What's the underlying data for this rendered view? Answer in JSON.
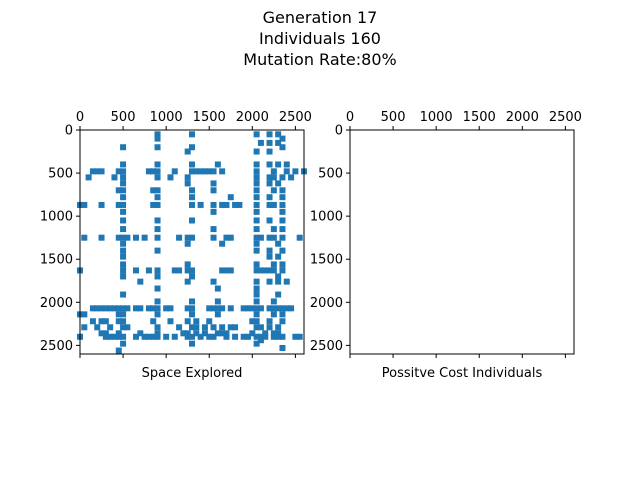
{
  "title": {
    "line1": "Generation 17",
    "line2": "Individuals 160",
    "line3": "Mutation Rate:80%"
  },
  "colors": {
    "marker": "#1f77b4",
    "axis": "#000000",
    "background": "#ffffff"
  },
  "chart_data": [
    {
      "type": "scatter",
      "xlabel": "Space Explored",
      "xlim": [
        0,
        2600
      ],
      "ylim": [
        2600,
        0
      ],
      "x_ticks": [
        0,
        500,
        1000,
        1500,
        2000,
        2500
      ],
      "y_ticks": [
        0,
        500,
        1000,
        1500,
        2000,
        2500
      ],
      "x_axis_position": "top",
      "y_inverted": true,
      "marker": "square",
      "points": [
        [
          900,
          50
        ],
        [
          900,
          100
        ],
        [
          1300,
          50
        ],
        [
          2050,
          50
        ],
        [
          2200,
          50
        ],
        [
          2300,
          50
        ],
        [
          2350,
          100
        ],
        [
          2100,
          150
        ],
        [
          2200,
          150
        ],
        [
          2300,
          150
        ],
        [
          500,
          200
        ],
        [
          900,
          200
        ],
        [
          1300,
          200
        ],
        [
          1250,
          250
        ],
        [
          2050,
          250
        ],
        [
          2200,
          250
        ],
        [
          2350,
          200
        ],
        [
          500,
          400
        ],
        [
          900,
          400
        ],
        [
          1300,
          400
        ],
        [
          1600,
          400
        ],
        [
          2050,
          400
        ],
        [
          2200,
          400
        ],
        [
          2300,
          400
        ],
        [
          2400,
          400
        ],
        [
          150,
          480
        ],
        [
          200,
          480
        ],
        [
          250,
          480
        ],
        [
          450,
          480
        ],
        [
          500,
          480
        ],
        [
          800,
          480
        ],
        [
          850,
          480
        ],
        [
          900,
          480
        ],
        [
          1100,
          480
        ],
        [
          1300,
          480
        ],
        [
          1350,
          480
        ],
        [
          1400,
          480
        ],
        [
          1450,
          480
        ],
        [
          1500,
          480
        ],
        [
          1550,
          480
        ],
        [
          1650,
          480
        ],
        [
          2050,
          480
        ],
        [
          2250,
          480
        ],
        [
          2400,
          480
        ],
        [
          2500,
          480
        ],
        [
          2600,
          480
        ],
        [
          100,
          550
        ],
        [
          400,
          550
        ],
        [
          500,
          550
        ],
        [
          900,
          550
        ],
        [
          1050,
          550
        ],
        [
          1250,
          550
        ],
        [
          2050,
          550
        ],
        [
          2200,
          550
        ],
        [
          2250,
          550
        ],
        [
          2350,
          550
        ],
        [
          2450,
          550
        ],
        [
          500,
          620
        ],
        [
          1250,
          620
        ],
        [
          1550,
          620
        ],
        [
          2050,
          620
        ],
        [
          2200,
          620
        ],
        [
          2300,
          620
        ],
        [
          450,
          700
        ],
        [
          500,
          700
        ],
        [
          850,
          700
        ],
        [
          900,
          700
        ],
        [
          1300,
          700
        ],
        [
          1550,
          700
        ],
        [
          2050,
          700
        ],
        [
          2250,
          700
        ],
        [
          2350,
          700
        ],
        [
          500,
          780
        ],
        [
          900,
          780
        ],
        [
          1300,
          780
        ],
        [
          1750,
          780
        ],
        [
          2050,
          780
        ],
        [
          2200,
          780
        ],
        [
          2350,
          780
        ],
        [
          0,
          870
        ],
        [
          50,
          870
        ],
        [
          250,
          870
        ],
        [
          450,
          870
        ],
        [
          500,
          870
        ],
        [
          850,
          870
        ],
        [
          900,
          870
        ],
        [
          1300,
          870
        ],
        [
          1400,
          870
        ],
        [
          1550,
          870
        ],
        [
          1650,
          870
        ],
        [
          1700,
          870
        ],
        [
          1800,
          870
        ],
        [
          1850,
          870
        ],
        [
          2050,
          870
        ],
        [
          2200,
          870
        ],
        [
          2250,
          870
        ],
        [
          2350,
          870
        ],
        [
          500,
          950
        ],
        [
          1550,
          950
        ],
        [
          2050,
          950
        ],
        [
          2350,
          950
        ],
        [
          500,
          1050
        ],
        [
          900,
          1050
        ],
        [
          1300,
          1050
        ],
        [
          2050,
          1050
        ],
        [
          2200,
          1050
        ],
        [
          2350,
          1050
        ],
        [
          500,
          1150
        ],
        [
          900,
          1150
        ],
        [
          1550,
          1150
        ],
        [
          2050,
          1150
        ],
        [
          2250,
          1150
        ],
        [
          2350,
          1150
        ],
        [
          50,
          1250
        ],
        [
          250,
          1250
        ],
        [
          450,
          1250
        ],
        [
          500,
          1250
        ],
        [
          550,
          1250
        ],
        [
          650,
          1250
        ],
        [
          750,
          1250
        ],
        [
          900,
          1250
        ],
        [
          1150,
          1250
        ],
        [
          1250,
          1250
        ],
        [
          1300,
          1250
        ],
        [
          1550,
          1250
        ],
        [
          1700,
          1250
        ],
        [
          1750,
          1250
        ],
        [
          2050,
          1250
        ],
        [
          2100,
          1250
        ],
        [
          2200,
          1250
        ],
        [
          2250,
          1250
        ],
        [
          2350,
          1250
        ],
        [
          2550,
          1250
        ],
        [
          500,
          1320
        ],
        [
          1250,
          1320
        ],
        [
          1650,
          1320
        ],
        [
          2050,
          1320
        ],
        [
          2300,
          1320
        ],
        [
          500,
          1400
        ],
        [
          900,
          1400
        ],
        [
          2050,
          1400
        ],
        [
          2200,
          1400
        ],
        [
          2350,
          1400
        ],
        [
          500,
          1470
        ],
        [
          2200,
          1470
        ],
        [
          2300,
          1470
        ],
        [
          500,
          1560
        ],
        [
          1250,
          1560
        ],
        [
          2050,
          1560
        ],
        [
          2250,
          1560
        ],
        [
          2350,
          1560
        ],
        [
          0,
          1630
        ],
        [
          500,
          1630
        ],
        [
          650,
          1630
        ],
        [
          800,
          1630
        ],
        [
          900,
          1630
        ],
        [
          1100,
          1630
        ],
        [
          1150,
          1630
        ],
        [
          1250,
          1630
        ],
        [
          1300,
          1630
        ],
        [
          1650,
          1630
        ],
        [
          1700,
          1630
        ],
        [
          1750,
          1630
        ],
        [
          2050,
          1630
        ],
        [
          2100,
          1630
        ],
        [
          2150,
          1630
        ],
        [
          2200,
          1630
        ],
        [
          2250,
          1630
        ],
        [
          2350,
          1630
        ],
        [
          500,
          1700
        ],
        [
          900,
          1700
        ],
        [
          1300,
          1700
        ],
        [
          2300,
          1700
        ],
        [
          700,
          1760
        ],
        [
          1250,
          1760
        ],
        [
          1550,
          1760
        ],
        [
          2050,
          1760
        ],
        [
          2200,
          1760
        ],
        [
          2300,
          1760
        ],
        [
          2400,
          1760
        ],
        [
          900,
          1840
        ],
        [
          1600,
          1840
        ],
        [
          2050,
          1840
        ],
        [
          500,
          1910
        ],
        [
          2050,
          1910
        ],
        [
          2300,
          1910
        ],
        [
          900,
          1990
        ],
        [
          1300,
          1990
        ],
        [
          1600,
          1990
        ],
        [
          2050,
          1990
        ],
        [
          2250,
          1990
        ],
        [
          150,
          2070
        ],
        [
          200,
          2070
        ],
        [
          250,
          2070
        ],
        [
          300,
          2070
        ],
        [
          350,
          2070
        ],
        [
          400,
          2070
        ],
        [
          450,
          2070
        ],
        [
          500,
          2070
        ],
        [
          550,
          2070
        ],
        [
          650,
          2070
        ],
        [
          700,
          2070
        ],
        [
          800,
          2070
        ],
        [
          850,
          2070
        ],
        [
          900,
          2070
        ],
        [
          1000,
          2070
        ],
        [
          1050,
          2070
        ],
        [
          1250,
          2070
        ],
        [
          1300,
          2070
        ],
        [
          1500,
          2070
        ],
        [
          1550,
          2070
        ],
        [
          1600,
          2070
        ],
        [
          1650,
          2070
        ],
        [
          1750,
          2070
        ],
        [
          1900,
          2070
        ],
        [
          1950,
          2070
        ],
        [
          2000,
          2070
        ],
        [
          2050,
          2070
        ],
        [
          2100,
          2070
        ],
        [
          2200,
          2070
        ],
        [
          2250,
          2070
        ],
        [
          2300,
          2070
        ],
        [
          2350,
          2070
        ],
        [
          2400,
          2070
        ],
        [
          2450,
          2070
        ],
        [
          0,
          2140
        ],
        [
          50,
          2140
        ],
        [
          450,
          2140
        ],
        [
          500,
          2140
        ],
        [
          900,
          2140
        ],
        [
          1300,
          2140
        ],
        [
          1600,
          2140
        ],
        [
          2050,
          2140
        ],
        [
          2250,
          2140
        ],
        [
          2350,
          2140
        ],
        [
          150,
          2220
        ],
        [
          250,
          2220
        ],
        [
          300,
          2220
        ],
        [
          450,
          2220
        ],
        [
          500,
          2220
        ],
        [
          850,
          2220
        ],
        [
          1050,
          2220
        ],
        [
          1250,
          2220
        ],
        [
          1350,
          2220
        ],
        [
          1500,
          2220
        ],
        [
          2000,
          2220
        ],
        [
          2050,
          2220
        ],
        [
          2200,
          2220
        ],
        [
          2350,
          2220
        ],
        [
          50,
          2290
        ],
        [
          200,
          2290
        ],
        [
          350,
          2290
        ],
        [
          500,
          2290
        ],
        [
          550,
          2290
        ],
        [
          900,
          2290
        ],
        [
          1150,
          2290
        ],
        [
          1300,
          2290
        ],
        [
          1350,
          2290
        ],
        [
          1450,
          2290
        ],
        [
          1550,
          2290
        ],
        [
          1650,
          2290
        ],
        [
          1750,
          2290
        ],
        [
          1800,
          2290
        ],
        [
          2050,
          2290
        ],
        [
          2100,
          2290
        ],
        [
          2200,
          2290
        ],
        [
          2300,
          2290
        ],
        [
          250,
          2360
        ],
        [
          300,
          2360
        ],
        [
          450,
          2360
        ],
        [
          700,
          2360
        ],
        [
          900,
          2360
        ],
        [
          1200,
          2360
        ],
        [
          1250,
          2360
        ],
        [
          1350,
          2360
        ],
        [
          1450,
          2360
        ],
        [
          1600,
          2360
        ],
        [
          1650,
          2360
        ],
        [
          1700,
          2360
        ],
        [
          2000,
          2360
        ],
        [
          2150,
          2360
        ],
        [
          2250,
          2360
        ],
        [
          2300,
          2360
        ],
        [
          0,
          2400
        ],
        [
          300,
          2400
        ],
        [
          350,
          2400
        ],
        [
          400,
          2400
        ],
        [
          450,
          2400
        ],
        [
          500,
          2400
        ],
        [
          650,
          2400
        ],
        [
          750,
          2400
        ],
        [
          800,
          2400
        ],
        [
          850,
          2400
        ],
        [
          900,
          2400
        ],
        [
          1000,
          2400
        ],
        [
          1100,
          2400
        ],
        [
          1250,
          2400
        ],
        [
          1300,
          2400
        ],
        [
          1400,
          2400
        ],
        [
          1500,
          2400
        ],
        [
          1550,
          2400
        ],
        [
          1700,
          2400
        ],
        [
          1800,
          2400
        ],
        [
          1900,
          2400
        ],
        [
          1950,
          2400
        ],
        [
          2050,
          2400
        ],
        [
          2100,
          2400
        ],
        [
          2150,
          2400
        ],
        [
          2250,
          2400
        ],
        [
          2300,
          2400
        ],
        [
          2350,
          2400
        ],
        [
          2500,
          2400
        ],
        [
          2550,
          2400
        ],
        [
          500,
          2480
        ],
        [
          1300,
          2480
        ],
        [
          2050,
          2480
        ],
        [
          2100,
          2440
        ],
        [
          450,
          2560
        ],
        [
          2350,
          2530
        ]
      ]
    },
    {
      "type": "scatter",
      "xlabel": "Possitve Cost Individuals",
      "xlim": [
        0,
        2600
      ],
      "ylim": [
        2600,
        0
      ],
      "x_ticks": [
        0,
        500,
        1000,
        1500,
        2000,
        2500
      ],
      "y_ticks": [
        0,
        500,
        1000,
        1500,
        2000,
        2500
      ],
      "x_axis_position": "top",
      "y_inverted": true,
      "marker": "square",
      "points": []
    }
  ]
}
